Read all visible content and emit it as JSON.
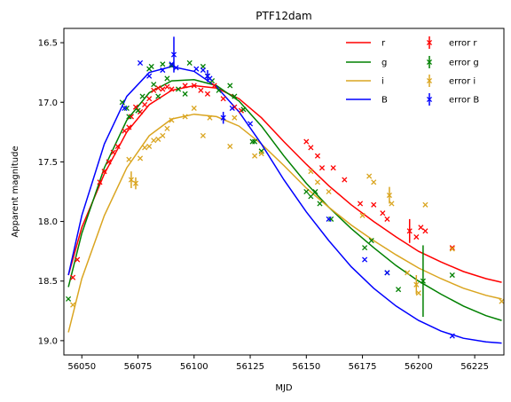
{
  "chart_data": {
    "type": "scatter",
    "title": "PTF12dam",
    "xlabel": "MJD",
    "ylabel": "Apparent magnitude",
    "xlim": [
      56042,
      56238
    ],
    "ylim": [
      19.12,
      16.38
    ],
    "y_inverted": true,
    "grid": false,
    "legend_position": "top-right",
    "legend_columns": 2,
    "x_ticks": [
      56050,
      56075,
      56100,
      56125,
      56150,
      56175,
      56200,
      56225
    ],
    "x_tick_labels": [
      "56050",
      "56075",
      "56100",
      "56125",
      "56150",
      "56175",
      "56200",
      "56225"
    ],
    "y_ticks": [
      16.5,
      17.0,
      17.5,
      18.0,
      18.5,
      19.0
    ],
    "y_tick_labels": [
      "16.5",
      "17.0",
      "17.5",
      "18.0",
      "18.5",
      "19.0"
    ],
    "fit_curves": [
      {
        "name": "r",
        "color": "#ff0000",
        "x": [
          56044,
          56050,
          56060,
          56070,
          56080,
          56090,
          56100,
          56110,
          56120,
          56130,
          56140,
          56150,
          56160,
          56170,
          56180,
          56190,
          56200,
          56210,
          56220,
          56230,
          56237
        ],
        "y": [
          18.45,
          18.05,
          17.6,
          17.25,
          17.02,
          16.9,
          16.86,
          16.88,
          16.97,
          17.13,
          17.33,
          17.52,
          17.7,
          17.86,
          18.0,
          18.13,
          18.25,
          18.34,
          18.42,
          18.48,
          18.51
        ]
      },
      {
        "name": "g",
        "color": "#008000",
        "x": [
          56044,
          56050,
          56060,
          56070,
          56080,
          56090,
          56100,
          56110,
          56120,
          56130,
          56140,
          56150,
          56160,
          56170,
          56180,
          56190,
          56200,
          56210,
          56220,
          56230,
          56237
        ],
        "y": [
          18.55,
          18.1,
          17.55,
          17.15,
          16.92,
          16.82,
          16.81,
          16.86,
          16.99,
          17.2,
          17.45,
          17.68,
          17.88,
          18.06,
          18.22,
          18.37,
          18.5,
          18.61,
          18.71,
          18.79,
          18.83
        ]
      },
      {
        "name": "i",
        "color": "#daa520",
        "x": [
          56044,
          56050,
          56060,
          56070,
          56080,
          56090,
          56100,
          56110,
          56120,
          56130,
          56140,
          56150,
          56160,
          56170,
          56180,
          56190,
          56200,
          56210,
          56220,
          56230,
          56237
        ],
        "y": [
          18.93,
          18.48,
          17.95,
          17.55,
          17.28,
          17.14,
          17.1,
          17.12,
          17.2,
          17.35,
          17.53,
          17.72,
          17.88,
          18.03,
          18.16,
          18.28,
          18.39,
          18.48,
          18.56,
          18.62,
          18.65
        ]
      },
      {
        "name": "B",
        "color": "#0000ff",
        "x": [
          56044,
          56050,
          56060,
          56070,
          56080,
          56090,
          56100,
          56110,
          56120,
          56130,
          56140,
          56150,
          56160,
          56170,
          56180,
          56190,
          56200,
          56210,
          56220,
          56230,
          56237
        ],
        "y": [
          18.45,
          17.95,
          17.35,
          16.95,
          16.75,
          16.7,
          16.74,
          16.87,
          17.08,
          17.35,
          17.65,
          17.92,
          18.16,
          18.38,
          18.56,
          18.71,
          18.83,
          18.92,
          18.98,
          19.01,
          19.02
        ]
      }
    ],
    "error_series": [
      {
        "name": "error r",
        "color": "#ff0000",
        "points": [
          {
            "x": 56046,
            "y": 18.47
          },
          {
            "x": 56048,
            "y": 18.32
          },
          {
            "x": 56058,
            "y": 17.67
          },
          {
            "x": 56060,
            "y": 17.58
          },
          {
            "x": 56062,
            "y": 17.5
          },
          {
            "x": 56064,
            "y": 17.42
          },
          {
            "x": 56066,
            "y": 17.37
          },
          {
            "x": 56069,
            "y": 17.24
          },
          {
            "x": 56071,
            "y": 17.21
          },
          {
            "x": 56072,
            "y": 17.12
          },
          {
            "x": 56074,
            "y": 17.04
          },
          {
            "x": 56076,
            "y": 17.08
          },
          {
            "x": 56078,
            "y": 17.02
          },
          {
            "x": 56080,
            "y": 16.97
          },
          {
            "x": 56082,
            "y": 16.9
          },
          {
            "x": 56084,
            "y": 16.88
          },
          {
            "x": 56086,
            "y": 16.89
          },
          {
            "x": 56088,
            "y": 16.87
          },
          {
            "x": 56090,
            "y": 16.89
          },
          {
            "x": 56096,
            "y": 16.86
          },
          {
            "x": 56100,
            "y": 16.86
          },
          {
            "x": 56103,
            "y": 16.9
          },
          {
            "x": 56106,
            "y": 16.93
          },
          {
            "x": 56109,
            "y": 16.86
          },
          {
            "x": 56113,
            "y": 16.97
          },
          {
            "x": 56118,
            "y": 17.04
          },
          {
            "x": 56121,
            "y": 17.07
          },
          {
            "x": 56150,
            "y": 17.33
          },
          {
            "x": 56152,
            "y": 17.38
          },
          {
            "x": 56155,
            "y": 17.45
          },
          {
            "x": 56157,
            "y": 17.55
          },
          {
            "x": 56162,
            "y": 17.55
          },
          {
            "x": 56167,
            "y": 17.65
          },
          {
            "x": 56174,
            "y": 17.85
          },
          {
            "x": 56180,
            "y": 17.86
          },
          {
            "x": 56184,
            "y": 17.93
          },
          {
            "x": 56186,
            "y": 17.98
          },
          {
            "x": 56196,
            "y": 18.08,
            "err": 0.1
          },
          {
            "x": 56199,
            "y": 18.13
          },
          {
            "x": 56201,
            "y": 18.05
          },
          {
            "x": 56203,
            "y": 18.08
          },
          {
            "x": 56215,
            "y": 18.22
          }
        ]
      },
      {
        "name": "error g",
        "color": "#008000",
        "points": [
          {
            "x": 56044,
            "y": 18.65
          },
          {
            "x": 56068,
            "y": 17.0
          },
          {
            "x": 56070,
            "y": 17.05
          },
          {
            "x": 56071,
            "y": 17.12
          },
          {
            "x": 56075,
            "y": 17.07
          },
          {
            "x": 56077,
            "y": 16.95
          },
          {
            "x": 56080,
            "y": 16.72
          },
          {
            "x": 56081,
            "y": 16.7
          },
          {
            "x": 56082,
            "y": 16.85
          },
          {
            "x": 56084,
            "y": 16.95
          },
          {
            "x": 56086,
            "y": 16.68
          },
          {
            "x": 56088,
            "y": 16.8
          },
          {
            "x": 56090,
            "y": 16.69
          },
          {
            "x": 56093,
            "y": 16.89
          },
          {
            "x": 56096,
            "y": 16.93
          },
          {
            "x": 56098,
            "y": 16.67
          },
          {
            "x": 56104,
            "y": 16.7
          },
          {
            "x": 56106,
            "y": 16.78
          },
          {
            "x": 56108,
            "y": 16.82
          },
          {
            "x": 56111,
            "y": 16.9
          },
          {
            "x": 56116,
            "y": 16.86
          },
          {
            "x": 56118,
            "y": 16.95
          },
          {
            "x": 56122,
            "y": 17.06
          },
          {
            "x": 56126,
            "y": 17.33
          },
          {
            "x": 56127,
            "y": 17.33
          },
          {
            "x": 56130,
            "y": 17.41
          },
          {
            "x": 56150,
            "y": 17.75
          },
          {
            "x": 56152,
            "y": 17.79
          },
          {
            "x": 56154,
            "y": 17.75
          },
          {
            "x": 56156,
            "y": 17.85
          },
          {
            "x": 56161,
            "y": 17.98
          },
          {
            "x": 56176,
            "y": 18.22
          },
          {
            "x": 56179,
            "y": 18.16
          },
          {
            "x": 56186,
            "y": 18.43
          },
          {
            "x": 56191,
            "y": 18.57
          },
          {
            "x": 56202,
            "y": 18.5,
            "err": 0.3
          },
          {
            "x": 56215,
            "y": 18.45
          }
        ]
      },
      {
        "name": "error i",
        "color": "#daa520",
        "points": [
          {
            "x": 56046,
            "y": 18.7
          },
          {
            "x": 56071,
            "y": 17.48
          },
          {
            "x": 56072,
            "y": 17.65,
            "err": 0.07
          },
          {
            "x": 56074,
            "y": 17.68,
            "err": 0.05
          },
          {
            "x": 56076,
            "y": 17.47
          },
          {
            "x": 56078,
            "y": 17.38
          },
          {
            "x": 56080,
            "y": 17.37
          },
          {
            "x": 56082,
            "y": 17.32
          },
          {
            "x": 56084,
            "y": 17.31
          },
          {
            "x": 56086,
            "y": 17.28
          },
          {
            "x": 56088,
            "y": 17.22
          },
          {
            "x": 56090,
            "y": 17.15
          },
          {
            "x": 56096,
            "y": 17.12
          },
          {
            "x": 56100,
            "y": 17.05
          },
          {
            "x": 56104,
            "y": 17.28
          },
          {
            "x": 56107,
            "y": 17.13
          },
          {
            "x": 56116,
            "y": 17.37
          },
          {
            "x": 56118,
            "y": 17.13
          },
          {
            "x": 56127,
            "y": 17.45
          },
          {
            "x": 56130,
            "y": 17.43
          },
          {
            "x": 56152,
            "y": 17.58
          },
          {
            "x": 56155,
            "y": 17.67
          },
          {
            "x": 56160,
            "y": 17.75
          },
          {
            "x": 56175,
            "y": 17.95
          },
          {
            "x": 56178,
            "y": 17.62
          },
          {
            "x": 56180,
            "y": 17.67
          },
          {
            "x": 56187,
            "y": 17.78,
            "err": 0.07
          },
          {
            "x": 56188,
            "y": 17.85
          },
          {
            "x": 56195,
            "y": 18.43
          },
          {
            "x": 56199,
            "y": 18.53,
            "err": 0.08
          },
          {
            "x": 56200,
            "y": 18.6
          },
          {
            "x": 56203,
            "y": 17.86
          },
          {
            "x": 56215,
            "y": 18.23
          },
          {
            "x": 56237,
            "y": 18.67
          }
        ]
      },
      {
        "name": "error B",
        "color": "#0000ff",
        "points": [
          {
            "x": 56069,
            "y": 17.05
          },
          {
            "x": 56076,
            "y": 16.67
          },
          {
            "x": 56080,
            "y": 16.78
          },
          {
            "x": 56086,
            "y": 16.73
          },
          {
            "x": 56090,
            "y": 16.68
          },
          {
            "x": 56091,
            "y": 16.6,
            "err": 0.15
          },
          {
            "x": 56092,
            "y": 16.71
          },
          {
            "x": 56101,
            "y": 16.72
          },
          {
            "x": 56104,
            "y": 16.73
          },
          {
            "x": 56106,
            "y": 16.78,
            "err": 0.05
          },
          {
            "x": 56107,
            "y": 16.8
          },
          {
            "x": 56113,
            "y": 17.13,
            "err": 0.05
          },
          {
            "x": 56117,
            "y": 17.05
          },
          {
            "x": 56125,
            "y": 17.18
          },
          {
            "x": 56160,
            "y": 17.98
          },
          {
            "x": 56176,
            "y": 18.32
          },
          {
            "x": 56186,
            "y": 18.43
          },
          {
            "x": 56215,
            "y": 18.96
          }
        ]
      }
    ],
    "legend": {
      "col1": [
        "r",
        "g",
        "i",
        "B"
      ],
      "col2": [
        "error r",
        "error g",
        "error i",
        "error B"
      ]
    }
  }
}
